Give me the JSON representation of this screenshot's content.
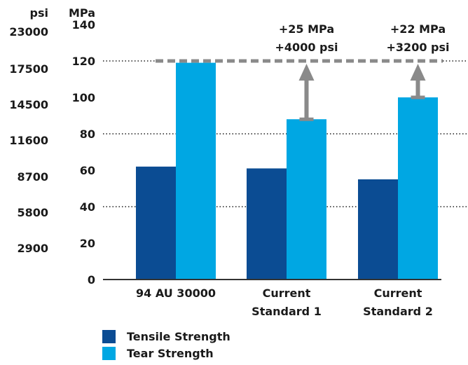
{
  "chart_data": {
    "type": "bar",
    "categories": [
      [
        "94 AU 30000"
      ],
      [
        "Current",
        "Standard 1"
      ],
      [
        "Current",
        "Standard 2"
      ]
    ],
    "series": [
      {
        "name": "Tensile Strength",
        "color": "#0b4c93",
        "values": [
          62,
          61,
          55
        ]
      },
      {
        "name": "Tear Strength",
        "color": "#00a7e3",
        "values": [
          119,
          88,
          100
        ]
      }
    ],
    "ylabel": "MPa",
    "ylim": [
      0,
      140
    ],
    "yticks": [
      0,
      20,
      40,
      60,
      80,
      100,
      120,
      140
    ],
    "secondary_axis_label": "psi",
    "secondary_ticks": [
      "2900",
      "5800",
      "8700",
      "11600",
      "14500",
      "17500",
      "23000"
    ],
    "gridlines": [
      40,
      80,
      120
    ],
    "reference_line": 120,
    "annotations": [
      {
        "category": 1,
        "lines": [
          "+25 MPa",
          "+4000 psi"
        ]
      },
      {
        "category": 2,
        "lines": [
          "+22 MPa",
          "+3200 psi"
        ]
      }
    ],
    "legend_position": "bottom-left"
  },
  "colors": {
    "tensile": "#0b4c93",
    "tear": "#00a7e3",
    "reference": "#8a8a8a",
    "grid": "#555555"
  }
}
